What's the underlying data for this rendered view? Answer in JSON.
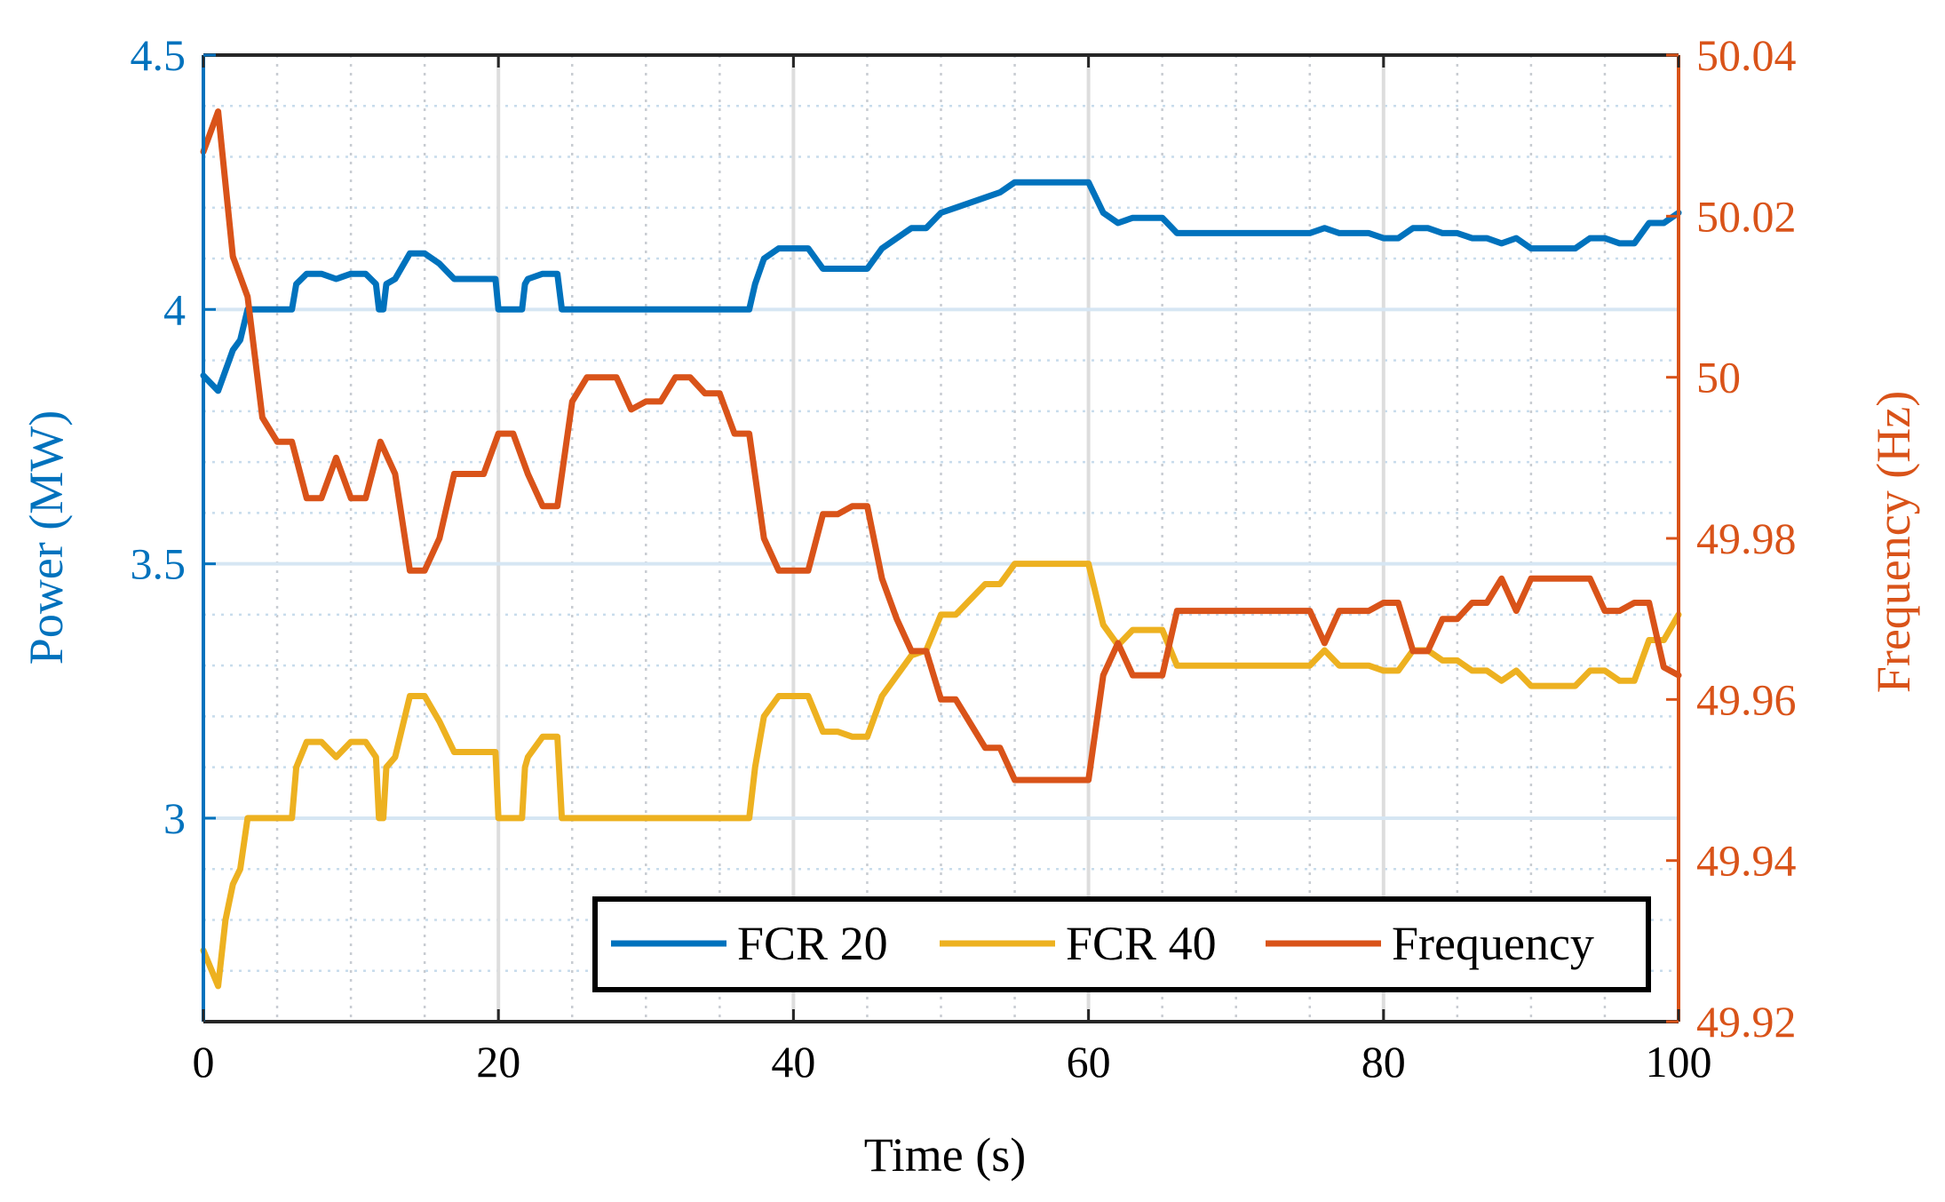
{
  "chart_data": {
    "type": "line",
    "title": "",
    "xlabel": "Time (s)",
    "ylabel_left": "Power (MW)",
    "ylabel_right": "Frequency (Hz)",
    "xlim": [
      0,
      100
    ],
    "ylim_left": [
      2.6,
      4.5
    ],
    "ylim_right": [
      49.92,
      50.04
    ],
    "xticks": [
      0,
      20,
      40,
      60,
      80,
      100
    ],
    "yticks_left": [
      3,
      3.5,
      4,
      4.5
    ],
    "yticks_left_labels": [
      "3",
      "3.5",
      "4",
      "4.5"
    ],
    "yticks_right": [
      49.92,
      49.94,
      49.96,
      49.98,
      50,
      50.02,
      50.04
    ],
    "yticks_right_labels": [
      "49.92",
      "49.94",
      "49.96",
      "49.98",
      "50",
      "50.02",
      "50.04"
    ],
    "grid": true,
    "legend_position": "bottom-right",
    "colors": {
      "fcr20": "#0072BD",
      "fcr40": "#EDB120",
      "frequency": "#D95319",
      "left_axis": "#0072BD",
      "right_axis": "#D95319"
    },
    "series": [
      {
        "name": "FCR 20",
        "axis": "left",
        "color": "#0072BD",
        "x": [
          0,
          1,
          2,
          2.5,
          3,
          6,
          6.3,
          7,
          8,
          9,
          10,
          11,
          11.7,
          11.9,
          12.2,
          12.4,
          13,
          14,
          15,
          16,
          17,
          18,
          19,
          19.8,
          20,
          21.6,
          21.8,
          22,
          23,
          24,
          24.3,
          24.6,
          37,
          37.4,
          38,
          39,
          40,
          41,
          42,
          43,
          44,
          45,
          46,
          47,
          48,
          49,
          50,
          51,
          52,
          53,
          54,
          55,
          56,
          58,
          59,
          60,
          61,
          62,
          63,
          64,
          65,
          66,
          70,
          75,
          76,
          77,
          79,
          80,
          81,
          82,
          83,
          84,
          85,
          86,
          87,
          88,
          89,
          90,
          91,
          92,
          93,
          94,
          95,
          96,
          97,
          98,
          99,
          100
        ],
        "values": [
          3.87,
          3.84,
          3.92,
          3.94,
          4.0,
          4.0,
          4.05,
          4.07,
          4.07,
          4.06,
          4.07,
          4.07,
          4.05,
          4.0,
          4.0,
          4.05,
          4.06,
          4.11,
          4.11,
          4.09,
          4.06,
          4.06,
          4.06,
          4.06,
          4.0,
          4.0,
          4.05,
          4.06,
          4.07,
          4.07,
          4.0,
          4.0,
          4.0,
          4.05,
          4.1,
          4.12,
          4.12,
          4.12,
          4.08,
          4.08,
          4.08,
          4.08,
          4.12,
          4.14,
          4.16,
          4.16,
          4.19,
          4.2,
          4.21,
          4.22,
          4.23,
          4.25,
          4.25,
          4.25,
          4.25,
          4.25,
          4.19,
          4.17,
          4.18,
          4.18,
          4.18,
          4.15,
          4.15,
          4.15,
          4.16,
          4.15,
          4.15,
          4.14,
          4.14,
          4.16,
          4.16,
          4.15,
          4.15,
          4.14,
          4.14,
          4.13,
          4.14,
          4.12,
          4.12,
          4.12,
          4.12,
          4.14,
          4.14,
          4.13,
          4.13,
          4.17,
          4.17,
          4.19
        ]
      },
      {
        "name": "FCR 40",
        "axis": "left",
        "color": "#EDB120",
        "x": [
          0,
          1,
          1.5,
          2,
          2.5,
          3,
          6,
          6.3,
          7,
          8,
          9,
          10,
          11,
          11.7,
          11.9,
          12.2,
          12.4,
          13,
          14,
          15,
          16,
          17,
          18,
          19,
          19.8,
          20,
          21.6,
          21.8,
          22,
          23,
          24,
          24.3,
          24.6,
          37,
          37.4,
          38,
          39,
          40,
          41,
          42,
          43,
          44,
          45,
          46,
          47,
          48,
          49,
          50,
          51,
          52,
          53,
          54,
          55,
          56,
          58,
          59,
          60,
          61,
          62,
          63,
          64,
          65,
          66,
          70,
          75,
          76,
          77,
          79,
          80,
          81,
          82,
          83,
          84,
          85,
          86,
          87,
          88,
          89,
          90,
          91,
          92,
          93,
          94,
          95,
          96,
          97,
          98,
          99,
          100
        ],
        "values": [
          2.74,
          2.67,
          2.8,
          2.87,
          2.9,
          3.0,
          3.0,
          3.1,
          3.15,
          3.15,
          3.12,
          3.15,
          3.15,
          3.12,
          3.0,
          3.0,
          3.1,
          3.12,
          3.24,
          3.24,
          3.19,
          3.13,
          3.13,
          3.13,
          3.13,
          3.0,
          3.0,
          3.1,
          3.12,
          3.16,
          3.16,
          3.0,
          3.0,
          3.0,
          3.1,
          3.2,
          3.24,
          3.24,
          3.24,
          3.17,
          3.17,
          3.16,
          3.16,
          3.24,
          3.28,
          3.32,
          3.33,
          3.4,
          3.4,
          3.43,
          3.46,
          3.46,
          3.5,
          3.5,
          3.5,
          3.5,
          3.5,
          3.38,
          3.34,
          3.37,
          3.37,
          3.37,
          3.3,
          3.3,
          3.3,
          3.33,
          3.3,
          3.3,
          3.29,
          3.29,
          3.33,
          3.33,
          3.31,
          3.31,
          3.29,
          3.29,
          3.27,
          3.29,
          3.26,
          3.26,
          3.26,
          3.26,
          3.29,
          3.29,
          3.27,
          3.27,
          3.35,
          3.35,
          3.4
        ]
      },
      {
        "name": "Frequency",
        "axis": "right",
        "color": "#D95319",
        "x": [
          0,
          1,
          2,
          3,
          4,
          5,
          6,
          7,
          8,
          9,
          10,
          11,
          12,
          13,
          14,
          15,
          16,
          17,
          18,
          19,
          20,
          21,
          22,
          23,
          24,
          25,
          26,
          27,
          28,
          29,
          30,
          31,
          32,
          33,
          34,
          35,
          36,
          37,
          38,
          39,
          40,
          41,
          42,
          43,
          44,
          45,
          46,
          47,
          48,
          49,
          50,
          51,
          52,
          53,
          54,
          55,
          56,
          57,
          58,
          59,
          60,
          61,
          62,
          63,
          64,
          65,
          66,
          67,
          68,
          69,
          70,
          71,
          72,
          73,
          74,
          75,
          76,
          77,
          78,
          79,
          80,
          81,
          82,
          83,
          84,
          85,
          86,
          87,
          88,
          89,
          90,
          91,
          92,
          93,
          94,
          95,
          96,
          97,
          98,
          99,
          100
        ],
        "values": [
          50.028,
          50.033,
          50.015,
          50.01,
          49.995,
          49.992,
          49.992,
          49.985,
          49.985,
          49.99,
          49.985,
          49.985,
          49.992,
          49.988,
          49.976,
          49.976,
          49.98,
          49.988,
          49.988,
          49.988,
          49.993,
          49.993,
          49.988,
          49.984,
          49.984,
          49.997,
          50.0,
          50.0,
          50.0,
          49.996,
          49.997,
          49.997,
          50.0,
          50.0,
          49.998,
          49.998,
          49.993,
          49.993,
          49.98,
          49.976,
          49.976,
          49.976,
          49.983,
          49.983,
          49.984,
          49.984,
          49.975,
          49.97,
          49.966,
          49.966,
          49.96,
          49.96,
          49.957,
          49.954,
          49.954,
          49.95,
          49.95,
          49.95,
          49.95,
          49.95,
          49.95,
          49.963,
          49.967,
          49.963,
          49.963,
          49.963,
          49.971,
          49.971,
          49.971,
          49.971,
          49.971,
          49.971,
          49.971,
          49.971,
          49.971,
          49.971,
          49.967,
          49.971,
          49.971,
          49.971,
          49.972,
          49.972,
          49.966,
          49.966,
          49.97,
          49.97,
          49.972,
          49.972,
          49.975,
          49.971,
          49.975,
          49.975,
          49.975,
          49.975,
          49.975,
          49.971,
          49.971,
          49.972,
          49.972,
          49.964,
          49.963
        ]
      }
    ]
  }
}
